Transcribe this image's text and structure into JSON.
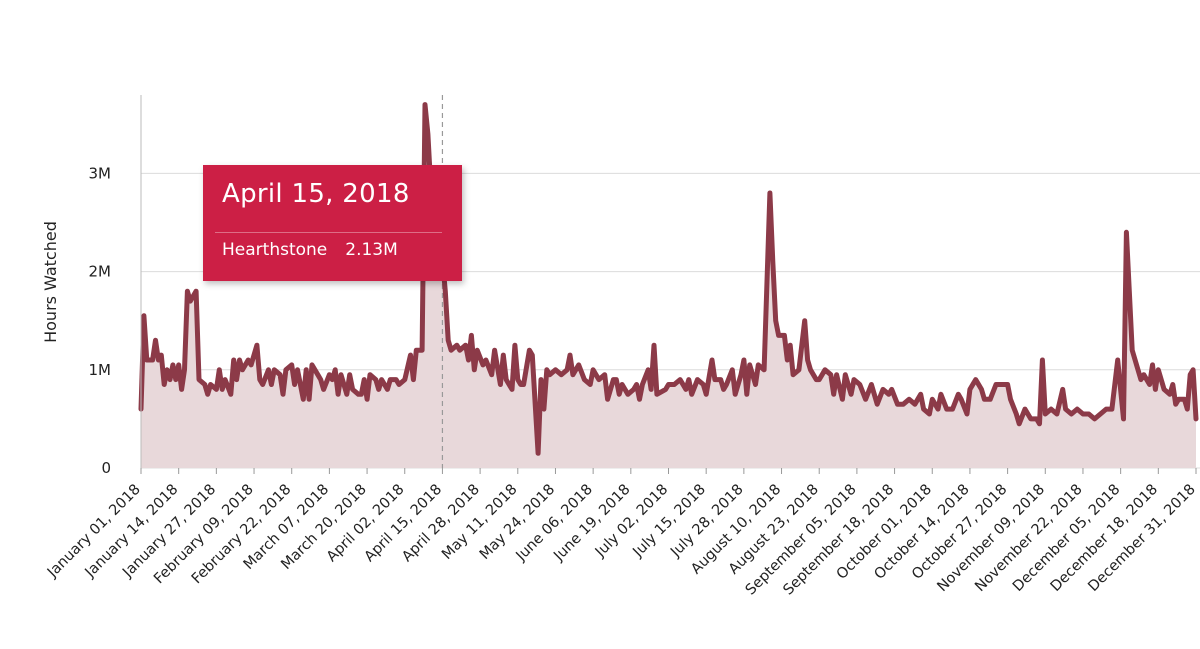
{
  "chart_data": {
    "type": "area",
    "ylabel": "Hours Watched",
    "ylim": [
      0,
      3900000
    ],
    "yticks": [
      0,
      1000000,
      2000000,
      3000000
    ],
    "ytick_labels": [
      "0",
      "1M",
      "2M",
      "3M"
    ],
    "xlim": [
      "2018-01-01",
      "2018-12-31"
    ],
    "xtick_labels": [
      "January 01, 2018",
      "January 14, 2018",
      "January 27, 2018",
      "February 09, 2018",
      "February 22, 2018",
      "March 07, 2018",
      "March 20, 2018",
      "April 02, 2018",
      "April 15, 2018",
      "April 28, 2018",
      "May 11, 2018",
      "May 24, 2018",
      "June 06, 2018",
      "June 19, 2018",
      "July 02, 2018",
      "July 15, 2018",
      "July 28, 2018",
      "August 10, 2018",
      "August 23, 2018",
      "September 05, 2018",
      "September 18, 2018",
      "October 01, 2018",
      "October 14, 2018",
      "October 27, 2018",
      "November 09, 2018",
      "November 22, 2018",
      "December 05, 2018",
      "December 18, 2018",
      "December 31, 2018"
    ],
    "grid": true,
    "series": [
      {
        "name": "Hearthstone",
        "color": "#8c3a48",
        "fill": "#e8d8da",
        "points": [
          [
            "2018-01-01",
            600000
          ],
          [
            "2018-01-02",
            1550000
          ],
          [
            "2018-01-03",
            1100000
          ],
          [
            "2018-01-05",
            1100000
          ],
          [
            "2018-01-06",
            1300000
          ],
          [
            "2018-01-07",
            1100000
          ],
          [
            "2018-01-08",
            1150000
          ],
          [
            "2018-01-09",
            850000
          ],
          [
            "2018-01-10",
            1000000
          ],
          [
            "2018-01-11",
            900000
          ],
          [
            "2018-01-12",
            1050000
          ],
          [
            "2018-01-13",
            900000
          ],
          [
            "2018-01-14",
            1050000
          ],
          [
            "2018-01-15",
            800000
          ],
          [
            "2018-01-16",
            1000000
          ],
          [
            "2018-01-17",
            1800000
          ],
          [
            "2018-01-18",
            1700000
          ],
          [
            "2018-01-20",
            1800000
          ],
          [
            "2018-01-21",
            900000
          ],
          [
            "2018-01-23",
            850000
          ],
          [
            "2018-01-24",
            750000
          ],
          [
            "2018-01-25",
            850000
          ],
          [
            "2018-01-27",
            800000
          ],
          [
            "2018-01-28",
            1000000
          ],
          [
            "2018-01-29",
            800000
          ],
          [
            "2018-01-30",
            900000
          ],
          [
            "2018-02-01",
            750000
          ],
          [
            "2018-02-02",
            1100000
          ],
          [
            "2018-02-03",
            900000
          ],
          [
            "2018-02-04",
            1100000
          ],
          [
            "2018-02-05",
            1000000
          ],
          [
            "2018-02-07",
            1100000
          ],
          [
            "2018-02-08",
            1050000
          ],
          [
            "2018-02-10",
            1250000
          ],
          [
            "2018-02-11",
            900000
          ],
          [
            "2018-02-12",
            850000
          ],
          [
            "2018-02-14",
            1000000
          ],
          [
            "2018-02-15",
            850000
          ],
          [
            "2018-02-16",
            1000000
          ],
          [
            "2018-02-18",
            950000
          ],
          [
            "2018-02-19",
            750000
          ],
          [
            "2018-02-20",
            1000000
          ],
          [
            "2018-02-22",
            1050000
          ],
          [
            "2018-02-23",
            850000
          ],
          [
            "2018-02-24",
            1000000
          ],
          [
            "2018-02-26",
            700000
          ],
          [
            "2018-02-27",
            1000000
          ],
          [
            "2018-02-28",
            700000
          ],
          [
            "2018-03-01",
            1050000
          ],
          [
            "2018-03-03",
            950000
          ],
          [
            "2018-03-04",
            900000
          ],
          [
            "2018-03-05",
            800000
          ],
          [
            "2018-03-07",
            950000
          ],
          [
            "2018-03-08",
            900000
          ],
          [
            "2018-03-09",
            1000000
          ],
          [
            "2018-03-10",
            750000
          ],
          [
            "2018-03-11",
            950000
          ],
          [
            "2018-03-13",
            750000
          ],
          [
            "2018-03-14",
            950000
          ],
          [
            "2018-03-15",
            800000
          ],
          [
            "2018-03-17",
            750000
          ],
          [
            "2018-03-18",
            750000
          ],
          [
            "2018-03-19",
            900000
          ],
          [
            "2018-03-20",
            700000
          ],
          [
            "2018-03-21",
            950000
          ],
          [
            "2018-03-23",
            900000
          ],
          [
            "2018-03-24",
            800000
          ],
          [
            "2018-03-25",
            900000
          ],
          [
            "2018-03-27",
            800000
          ],
          [
            "2018-03-28",
            900000
          ],
          [
            "2018-03-30",
            900000
          ],
          [
            "2018-03-31",
            850000
          ],
          [
            "2018-04-02",
            900000
          ],
          [
            "2018-04-04",
            1150000
          ],
          [
            "2018-04-05",
            900000
          ],
          [
            "2018-04-06",
            1200000
          ],
          [
            "2018-04-08",
            1200000
          ],
          [
            "2018-04-09",
            3700000
          ],
          [
            "2018-04-10",
            3400000
          ],
          [
            "2018-04-12",
            2300000
          ],
          [
            "2018-04-15",
            2130000
          ],
          [
            "2018-04-16",
            1800000
          ],
          [
            "2018-04-17",
            1300000
          ],
          [
            "2018-04-18",
            1200000
          ],
          [
            "2018-04-20",
            1250000
          ],
          [
            "2018-04-21",
            1200000
          ],
          [
            "2018-04-23",
            1250000
          ],
          [
            "2018-04-24",
            1100000
          ],
          [
            "2018-04-25",
            1350000
          ],
          [
            "2018-04-26",
            1000000
          ],
          [
            "2018-04-27",
            1200000
          ],
          [
            "2018-04-29",
            1050000
          ],
          [
            "2018-04-30",
            1100000
          ],
          [
            "2018-05-02",
            950000
          ],
          [
            "2018-05-03",
            1200000
          ],
          [
            "2018-05-05",
            850000
          ],
          [
            "2018-05-06",
            1150000
          ],
          [
            "2018-05-07",
            900000
          ],
          [
            "2018-05-09",
            800000
          ],
          [
            "2018-05-10",
            1250000
          ],
          [
            "2018-05-11",
            900000
          ],
          [
            "2018-05-12",
            850000
          ],
          [
            "2018-05-13",
            850000
          ],
          [
            "2018-05-15",
            1200000
          ],
          [
            "2018-05-16",
            1150000
          ],
          [
            "2018-05-18",
            150000
          ],
          [
            "2018-05-19",
            900000
          ],
          [
            "2018-05-20",
            600000
          ],
          [
            "2018-05-21",
            1000000
          ],
          [
            "2018-05-22",
            950000
          ],
          [
            "2018-05-24",
            1000000
          ],
          [
            "2018-05-26",
            950000
          ],
          [
            "2018-05-28",
            1000000
          ],
          [
            "2018-05-29",
            1150000
          ],
          [
            "2018-05-30",
            950000
          ],
          [
            "2018-06-01",
            1050000
          ],
          [
            "2018-06-03",
            900000
          ],
          [
            "2018-06-05",
            850000
          ],
          [
            "2018-06-06",
            1000000
          ],
          [
            "2018-06-08",
            900000
          ],
          [
            "2018-06-10",
            950000
          ],
          [
            "2018-06-11",
            700000
          ],
          [
            "2018-06-13",
            900000
          ],
          [
            "2018-06-14",
            900000
          ],
          [
            "2018-06-15",
            750000
          ],
          [
            "2018-06-16",
            850000
          ],
          [
            "2018-06-18",
            750000
          ],
          [
            "2018-06-20",
            800000
          ],
          [
            "2018-06-21",
            850000
          ],
          [
            "2018-06-22",
            700000
          ],
          [
            "2018-06-23",
            850000
          ],
          [
            "2018-06-25",
            1000000
          ],
          [
            "2018-06-26",
            800000
          ],
          [
            "2018-06-27",
            1250000
          ],
          [
            "2018-06-28",
            750000
          ],
          [
            "2018-07-01",
            800000
          ],
          [
            "2018-07-02",
            850000
          ],
          [
            "2018-07-04",
            850000
          ],
          [
            "2018-07-06",
            900000
          ],
          [
            "2018-07-08",
            800000
          ],
          [
            "2018-07-09",
            900000
          ],
          [
            "2018-07-10",
            750000
          ],
          [
            "2018-07-12",
            900000
          ],
          [
            "2018-07-14",
            850000
          ],
          [
            "2018-07-15",
            750000
          ],
          [
            "2018-07-17",
            1100000
          ],
          [
            "2018-07-18",
            900000
          ],
          [
            "2018-07-20",
            900000
          ],
          [
            "2018-07-21",
            800000
          ],
          [
            "2018-07-22",
            850000
          ],
          [
            "2018-07-24",
            1000000
          ],
          [
            "2018-07-25",
            750000
          ],
          [
            "2018-07-27",
            950000
          ],
          [
            "2018-07-28",
            1100000
          ],
          [
            "2018-07-29",
            750000
          ],
          [
            "2018-07-30",
            1050000
          ],
          [
            "2018-08-01",
            850000
          ],
          [
            "2018-08-02",
            1050000
          ],
          [
            "2018-08-04",
            1000000
          ],
          [
            "2018-08-06",
            2800000
          ],
          [
            "2018-08-07",
            2100000
          ],
          [
            "2018-08-08",
            1500000
          ],
          [
            "2018-08-09",
            1350000
          ],
          [
            "2018-08-11",
            1350000
          ],
          [
            "2018-08-12",
            1100000
          ],
          [
            "2018-08-13",
            1250000
          ],
          [
            "2018-08-14",
            950000
          ],
          [
            "2018-08-16",
            1000000
          ],
          [
            "2018-08-18",
            1500000
          ],
          [
            "2018-08-19",
            1100000
          ],
          [
            "2018-08-20",
            1000000
          ],
          [
            "2018-08-22",
            900000
          ],
          [
            "2018-08-23",
            900000
          ],
          [
            "2018-08-25",
            1000000
          ],
          [
            "2018-08-27",
            950000
          ],
          [
            "2018-08-28",
            750000
          ],
          [
            "2018-08-29",
            950000
          ],
          [
            "2018-08-31",
            700000
          ],
          [
            "2018-09-01",
            950000
          ],
          [
            "2018-09-03",
            750000
          ],
          [
            "2018-09-04",
            900000
          ],
          [
            "2018-09-06",
            850000
          ],
          [
            "2018-09-08",
            700000
          ],
          [
            "2018-09-10",
            850000
          ],
          [
            "2018-09-12",
            650000
          ],
          [
            "2018-09-14",
            800000
          ],
          [
            "2018-09-16",
            750000
          ],
          [
            "2018-09-17",
            800000
          ],
          [
            "2018-09-19",
            650000
          ],
          [
            "2018-09-21",
            650000
          ],
          [
            "2018-09-23",
            700000
          ],
          [
            "2018-09-25",
            650000
          ],
          [
            "2018-09-27",
            750000
          ],
          [
            "2018-09-28",
            600000
          ],
          [
            "2018-09-30",
            550000
          ],
          [
            "2018-10-01",
            700000
          ],
          [
            "2018-10-03",
            600000
          ],
          [
            "2018-10-04",
            750000
          ],
          [
            "2018-10-06",
            600000
          ],
          [
            "2018-10-08",
            600000
          ],
          [
            "2018-10-10",
            750000
          ],
          [
            "2018-10-11",
            700000
          ],
          [
            "2018-10-13",
            550000
          ],
          [
            "2018-10-14",
            800000
          ],
          [
            "2018-10-16",
            900000
          ],
          [
            "2018-10-18",
            800000
          ],
          [
            "2018-10-19",
            700000
          ],
          [
            "2018-10-21",
            700000
          ],
          [
            "2018-10-23",
            850000
          ],
          [
            "2018-10-25",
            850000
          ],
          [
            "2018-10-27",
            850000
          ],
          [
            "2018-10-28",
            700000
          ],
          [
            "2018-10-30",
            550000
          ],
          [
            "2018-10-31",
            450000
          ],
          [
            "2018-11-02",
            600000
          ],
          [
            "2018-11-04",
            500000
          ],
          [
            "2018-11-06",
            500000
          ],
          [
            "2018-11-07",
            450000
          ],
          [
            "2018-11-08",
            1100000
          ],
          [
            "2018-11-09",
            550000
          ],
          [
            "2018-11-11",
            600000
          ],
          [
            "2018-11-13",
            550000
          ],
          [
            "2018-11-15",
            800000
          ],
          [
            "2018-11-16",
            600000
          ],
          [
            "2018-11-18",
            550000
          ],
          [
            "2018-11-20",
            600000
          ],
          [
            "2018-11-22",
            550000
          ],
          [
            "2018-11-24",
            550000
          ],
          [
            "2018-11-26",
            500000
          ],
          [
            "2018-11-28",
            550000
          ],
          [
            "2018-11-30",
            600000
          ],
          [
            "2018-12-02",
            600000
          ],
          [
            "2018-12-04",
            1100000
          ],
          [
            "2018-12-05",
            800000
          ],
          [
            "2018-12-06",
            500000
          ],
          [
            "2018-12-07",
            2400000
          ],
          [
            "2018-12-08",
            1800000
          ],
          [
            "2018-12-09",
            1200000
          ],
          [
            "2018-12-11",
            1000000
          ],
          [
            "2018-12-12",
            900000
          ],
          [
            "2018-12-13",
            950000
          ],
          [
            "2018-12-15",
            850000
          ],
          [
            "2018-12-16",
            1050000
          ],
          [
            "2018-12-17",
            800000
          ],
          [
            "2018-12-18",
            1000000
          ],
          [
            "2018-12-20",
            800000
          ],
          [
            "2018-12-22",
            750000
          ],
          [
            "2018-12-23",
            850000
          ],
          [
            "2018-12-24",
            650000
          ],
          [
            "2018-12-25",
            700000
          ],
          [
            "2018-12-27",
            700000
          ],
          [
            "2018-12-28",
            600000
          ],
          [
            "2018-12-29",
            950000
          ],
          [
            "2018-12-30",
            1000000
          ],
          [
            "2018-12-31",
            500000
          ]
        ]
      }
    ],
    "crosshair_date": "2018-04-15",
    "tooltip": {
      "date": "April 15, 2018",
      "series_name": "Hearthstone",
      "value_text": "2.13M",
      "background": "#cc1f45"
    }
  }
}
